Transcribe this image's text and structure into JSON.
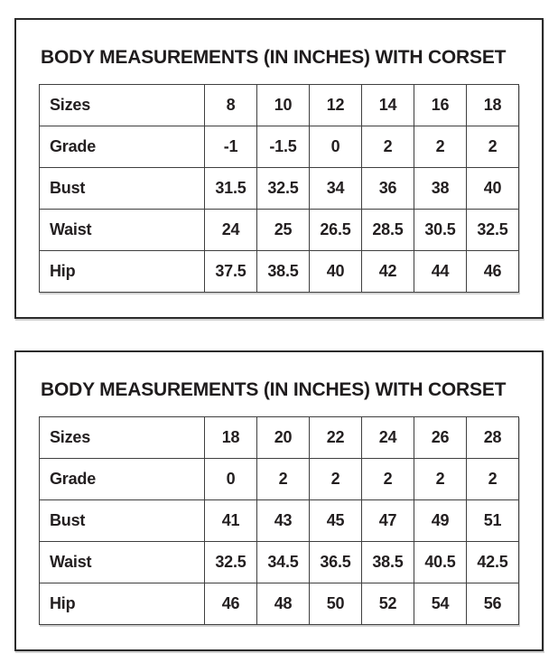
{
  "colors": {
    "background": "#ffffff",
    "text": "#231f20",
    "panel_border": "#2b2b2b",
    "table_border": "#3f3f3f"
  },
  "tables": [
    {
      "title": "BODY MEASUREMENTS (IN INCHES) WITH CORSET",
      "rows": [
        {
          "label": "Sizes",
          "values": [
            "8",
            "10",
            "12",
            "14",
            "16",
            "18"
          ]
        },
        {
          "label": "Grade",
          "values": [
            "-1",
            "-1.5",
            "0",
            "2",
            "2",
            "2"
          ]
        },
        {
          "label": "Bust",
          "values": [
            "31.5",
            "32.5",
            "34",
            "36",
            "38",
            "40"
          ]
        },
        {
          "label": "Waist",
          "values": [
            "24",
            "25",
            "26.5",
            "28.5",
            "30.5",
            "32.5"
          ]
        },
        {
          "label": "Hip",
          "values": [
            "37.5",
            "38.5",
            "40",
            "42",
            "44",
            "46"
          ]
        }
      ]
    },
    {
      "title": "BODY MEASUREMENTS (IN INCHES) WITH CORSET",
      "rows": [
        {
          "label": "Sizes",
          "values": [
            "18",
            "20",
            "22",
            "24",
            "26",
            "28"
          ]
        },
        {
          "label": "Grade",
          "values": [
            "0",
            "2",
            "2",
            "2",
            "2",
            "2"
          ]
        },
        {
          "label": "Bust",
          "values": [
            "41",
            "43",
            "45",
            "47",
            "49",
            "51"
          ]
        },
        {
          "label": "Waist",
          "values": [
            "32.5",
            "34.5",
            "36.5",
            "38.5",
            "40.5",
            "42.5"
          ]
        },
        {
          "label": "Hip",
          "values": [
            "46",
            "48",
            "50",
            "52",
            "54",
            "56"
          ]
        }
      ]
    }
  ]
}
